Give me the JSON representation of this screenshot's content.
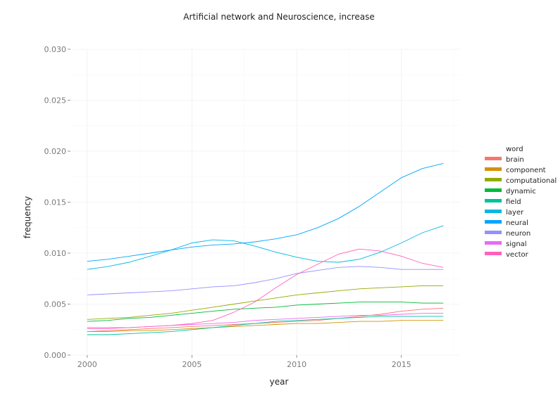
{
  "chart_data": {
    "type": "line",
    "title": "Artificial network and Neuroscience, increase",
    "xlabel": "year",
    "ylabel": "frequency",
    "xlim": [
      1999.2,
      2017.8
    ],
    "ylim": [
      0,
      0.03
    ],
    "xticks": [
      2000,
      2005,
      2010,
      2015
    ],
    "xtick_labels": [
      "2000",
      "2005",
      "2010",
      "2015"
    ],
    "yticks": [
      0,
      0.005,
      0.01,
      0.015,
      0.02,
      0.025,
      0.03
    ],
    "ytick_labels": [
      "0.000",
      "0.005",
      "0.010",
      "0.015",
      "0.020",
      "0.025",
      "0.030"
    ],
    "grid": true,
    "legend_position": "right",
    "legend_title": "word",
    "x": [
      2000,
      2001,
      2002,
      2003,
      2004,
      2005,
      2006,
      2007,
      2008,
      2009,
      2010,
      2011,
      2012,
      2013,
      2014,
      2015,
      2016,
      2017
    ],
    "series": [
      {
        "name": "brain",
        "color": "#F8766D",
        "values": [
          0.0023,
          0.0024,
          0.0025,
          0.0026,
          0.0027,
          0.0028,
          0.0029,
          0.003,
          0.0031,
          0.0032,
          0.0033,
          0.0034,
          0.0036,
          0.0038,
          0.004,
          0.0043,
          0.0045,
          0.0046
        ]
      },
      {
        "name": "component",
        "color": "#D39200",
        "values": [
          0.0023,
          0.0023,
          0.0024,
          0.0024,
          0.0025,
          0.0026,
          0.0027,
          0.0028,
          0.0029,
          0.003,
          0.0031,
          0.0031,
          0.0032,
          0.0033,
          0.0033,
          0.0034,
          0.0034,
          0.0034
        ]
      },
      {
        "name": "computational",
        "color": "#93AA00",
        "values": [
          0.0035,
          0.0036,
          0.0037,
          0.0039,
          0.0041,
          0.0044,
          0.0047,
          0.005,
          0.0053,
          0.0056,
          0.0059,
          0.0061,
          0.0063,
          0.0065,
          0.0066,
          0.0067,
          0.0068,
          0.0068
        ]
      },
      {
        "name": "dynamic",
        "color": "#00BA38",
        "values": [
          0.0033,
          0.0034,
          0.0036,
          0.0037,
          0.0039,
          0.0041,
          0.0043,
          0.0045,
          0.0046,
          0.0047,
          0.0049,
          0.005,
          0.0051,
          0.0052,
          0.0052,
          0.0052,
          0.0051,
          0.0051
        ]
      },
      {
        "name": "field",
        "color": "#00C19F",
        "values": [
          0.002,
          0.002,
          0.0021,
          0.0022,
          0.0023,
          0.0025,
          0.0027,
          0.0029,
          0.0031,
          0.0033,
          0.0034,
          0.0035,
          0.0036,
          0.0037,
          0.0038,
          0.0038,
          0.0038,
          0.0038
        ]
      },
      {
        "name": "layer",
        "color": "#00B9E3",
        "values": [
          0.0084,
          0.0087,
          0.0091,
          0.0097,
          0.0103,
          0.011,
          0.0113,
          0.0112,
          0.0107,
          0.0101,
          0.0096,
          0.0092,
          0.0091,
          0.0094,
          0.0101,
          0.011,
          0.012,
          0.0127
        ]
      },
      {
        "name": "neural",
        "color": "#00A5FF",
        "values": [
          0.0092,
          0.0094,
          0.0097,
          0.01,
          0.0103,
          0.0106,
          0.0108,
          0.0109,
          0.0111,
          0.0114,
          0.0118,
          0.0125,
          0.0134,
          0.0146,
          0.016,
          0.0174,
          0.0183,
          0.0188
        ]
      },
      {
        "name": "neuron",
        "color": "#9590FF",
        "values": [
          0.0059,
          0.006,
          0.0061,
          0.0062,
          0.0063,
          0.0065,
          0.0067,
          0.0068,
          0.0071,
          0.0075,
          0.008,
          0.0083,
          0.0086,
          0.0087,
          0.0086,
          0.0084,
          0.0084,
          0.0084
        ]
      },
      {
        "name": "signal",
        "color": "#E76BF3",
        "values": [
          0.0027,
          0.0027,
          0.0027,
          0.0028,
          0.0029,
          0.003,
          0.0031,
          0.0032,
          0.0034,
          0.0035,
          0.0036,
          0.0037,
          0.0038,
          0.0039,
          0.0039,
          0.004,
          0.0041,
          0.0041
        ]
      },
      {
        "name": "vector",
        "color": "#FF62BC",
        "values": [
          0.0026,
          0.0026,
          0.0027,
          0.0028,
          0.0029,
          0.0031,
          0.0034,
          0.0042,
          0.0052,
          0.0066,
          0.0079,
          0.0089,
          0.0099,
          0.0104,
          0.0102,
          0.0097,
          0.009,
          0.0086
        ]
      }
    ]
  }
}
